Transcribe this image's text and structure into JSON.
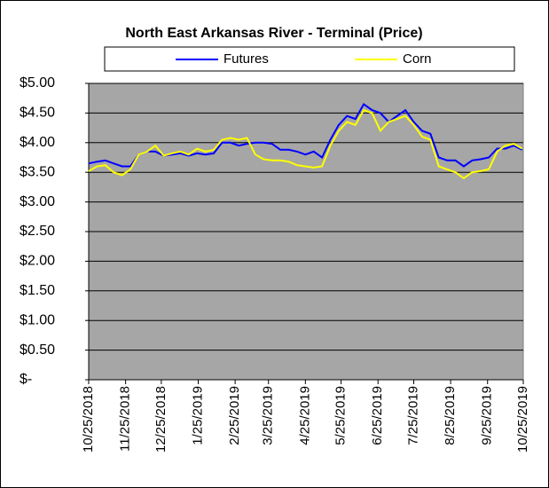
{
  "chart_data": {
    "type": "line",
    "title": "North East Arkansas River - Terminal (Price)",
    "x": [
      "10/25/2018",
      "11/1/2018",
      "11/8/2018",
      "11/15/2018",
      "11/22/2018",
      "11/29/2018",
      "12/6/2018",
      "12/13/2018",
      "12/20/2018",
      "12/27/2018",
      "1/3/2019",
      "1/10/2019",
      "1/17/2019",
      "1/24/2019",
      "1/31/2019",
      "2/7/2019",
      "2/14/2019",
      "2/21/2019",
      "2/28/2019",
      "3/7/2019",
      "3/14/2019",
      "3/21/2019",
      "3/28/2019",
      "4/4/2019",
      "4/11/2019",
      "4/18/2019",
      "4/25/2019",
      "5/2/2019",
      "5/9/2019",
      "5/16/2019",
      "5/23/2019",
      "5/30/2019",
      "6/6/2019",
      "6/13/2019",
      "6/20/2019",
      "6/27/2019",
      "7/4/2019",
      "7/11/2019",
      "7/18/2019",
      "7/25/2019",
      "8/1/2019",
      "8/8/2019",
      "8/15/2019",
      "8/22/2019",
      "8/29/2019",
      "9/5/2019",
      "9/12/2019",
      "9/19/2019",
      "9/26/2019",
      "10/3/2019",
      "10/10/2019",
      "10/17/2019",
      "10/24/2019"
    ],
    "series": [
      {
        "name": "Futures",
        "color": "#0000ff",
        "values": [
          3.65,
          3.68,
          3.7,
          3.65,
          3.6,
          3.6,
          3.8,
          3.85,
          3.85,
          3.78,
          3.8,
          3.82,
          3.78,
          3.82,
          3.8,
          3.82,
          4.0,
          4.0,
          3.95,
          3.98,
          4.0,
          4.0,
          3.98,
          3.88,
          3.88,
          3.85,
          3.8,
          3.85,
          3.75,
          4.05,
          4.3,
          4.45,
          4.4,
          4.65,
          4.55,
          4.5,
          4.35,
          4.45,
          4.55,
          4.35,
          4.2,
          4.15,
          3.75,
          3.7,
          3.7,
          3.6,
          3.7,
          3.72,
          3.75,
          3.9,
          3.9,
          3.95,
          3.88
        ]
      },
      {
        "name": "Corn",
        "color": "#ffff00",
        "values": [
          3.52,
          3.6,
          3.62,
          3.5,
          3.45,
          3.55,
          3.8,
          3.85,
          3.95,
          3.78,
          3.82,
          3.85,
          3.8,
          3.9,
          3.85,
          3.88,
          4.05,
          4.08,
          4.05,
          4.08,
          3.8,
          3.72,
          3.7,
          3.7,
          3.68,
          3.62,
          3.6,
          3.58,
          3.6,
          3.95,
          4.2,
          4.35,
          4.3,
          4.55,
          4.5,
          4.2,
          4.35,
          4.4,
          4.45,
          4.3,
          4.1,
          4.05,
          3.6,
          3.55,
          3.5,
          3.4,
          3.5,
          3.52,
          3.55,
          3.85,
          3.95,
          3.98,
          3.9
        ]
      }
    ],
    "xlim": [
      "10/25/2018",
      "10/25/2019"
    ],
    "xticks": [
      "10/25/2018",
      "11/25/2018",
      "12/25/2018",
      "1/25/2019",
      "2/25/2019",
      "3/25/2019",
      "4/25/2019",
      "5/25/2019",
      "6/25/2019",
      "7/25/2019",
      "8/25/2019",
      "9/25/2019",
      "10/25/2019"
    ],
    "ylim": [
      0,
      5
    ],
    "yticks": [
      {
        "value": 0,
        "label": "$-"
      },
      {
        "value": 0.5,
        "label": "$0.50"
      },
      {
        "value": 1,
        "label": "$1.00"
      },
      {
        "value": 1.5,
        "label": "$1.50"
      },
      {
        "value": 2,
        "label": "$2.00"
      },
      {
        "value": 2.5,
        "label": "$2.50"
      },
      {
        "value": 3,
        "label": "$3.00"
      },
      {
        "value": 3.5,
        "label": "$3.50"
      },
      {
        "value": 4,
        "label": "$4.00"
      },
      {
        "value": 4.5,
        "label": "$4.50"
      },
      {
        "value": 5,
        "label": "$5.00"
      }
    ],
    "grid": true,
    "legend": "top"
  }
}
